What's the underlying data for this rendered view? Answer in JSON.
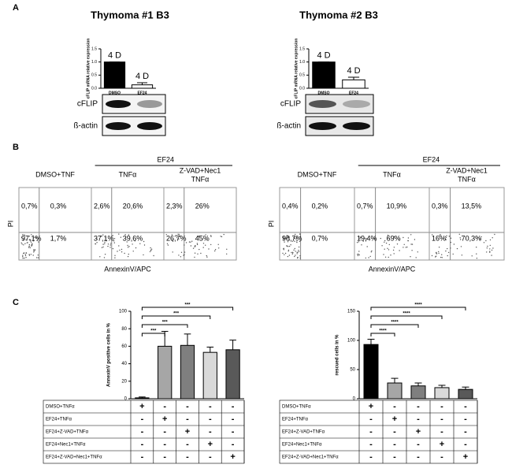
{
  "panel_labels": [
    "A",
    "B",
    "C"
  ],
  "chart_data": [
    {
      "type": "bar",
      "title": "Thymoma  #1 B3",
      "y_label": "cFLIP mRNA relative expression",
      "categories": [
        "DMSO",
        "EF24"
      ],
      "values": [
        1.0,
        0.13
      ],
      "errors": [
        0,
        0.08
      ],
      "annotations": [
        "4 D",
        "4 D"
      ],
      "colors": [
        "#000000",
        "#ffffff"
      ],
      "ylim": [
        0,
        1.5
      ],
      "yticks": [
        {
          "value": 0,
          "label": "0.0"
        },
        {
          "value": 0.5,
          "label": "0.5"
        },
        {
          "value": 1,
          "label": "1.0"
        },
        {
          "value": 1.5,
          "label": "1.5"
        }
      ]
    },
    {
      "type": "bar",
      "title": "Thymoma  #2 B3",
      "y_label": "cFLIP mRNA relative expression",
      "categories": [
        "DMSO",
        "EF24"
      ],
      "values": [
        1.0,
        0.32
      ],
      "errors": [
        0,
        0.1
      ],
      "annotations": [
        "4 D",
        "4 D"
      ],
      "colors": [
        "#000000",
        "#ffffff"
      ],
      "ylim": [
        0,
        1.5
      ],
      "yticks": [
        {
          "value": 0,
          "label": "0.0"
        },
        {
          "value": 0.5,
          "label": "0.5"
        },
        {
          "value": 1,
          "label": "1.0"
        },
        {
          "value": 1.5,
          "label": "1.5"
        }
      ]
    },
    {
      "type": "bar",
      "y_label": "AnnexinV positive cells in %",
      "values": [
        1,
        60,
        61,
        53,
        56
      ],
      "errors": [
        1,
        17,
        13,
        6,
        11
      ],
      "colors": [
        "#000000",
        "#a6a6a6",
        "#7f7f7f",
        "#d9d9d9",
        "#595959"
      ],
      "significance": [
        "***",
        "***",
        "***",
        "***"
      ],
      "ylim": [
        0,
        100
      ],
      "yticks": [
        0,
        20,
        40,
        60,
        80,
        100
      ]
    },
    {
      "type": "bar",
      "y_label": "rescued cells in %",
      "values": [
        93,
        27,
        22,
        19,
        16
      ],
      "errors": [
        9,
        8,
        5,
        4,
        4
      ],
      "colors": [
        "#000000",
        "#a6a6a6",
        "#7f7f7f",
        "#d9d9d9",
        "#595959"
      ],
      "significance": [
        "****",
        "****",
        "****",
        "****"
      ],
      "ylim": [
        0,
        150
      ],
      "yticks": [
        0,
        50,
        100,
        150
      ]
    }
  ],
  "blots": [
    {
      "labels": [
        "cFLIP",
        "ß-actin"
      ]
    },
    {
      "labels": [
        "cFLIP",
        "ß-actin"
      ]
    }
  ],
  "flow": [
    {
      "group_label": "EF24",
      "headers": [
        [
          "DMSO+TNF"
        ],
        [
          "TNFα"
        ],
        [
          "Z-VAD+Nec1",
          "TNFα"
        ]
      ],
      "y_label": "PI",
      "x_label": "AnnexinV/APC",
      "plots": [
        {
          "ul": "0,7%",
          "ur": "0,3%",
          "ll": "97,1%",
          "lr": "1,7%"
        },
        {
          "ul": "2,6%",
          "ur": "20,6%",
          "ll": "37,1%",
          "lr": "39,6%"
        },
        {
          "ul": "2,3%",
          "ur": "26%",
          "ll": "26,7%",
          "lr": "45%"
        }
      ]
    },
    {
      "group_label": "EF24",
      "headers": [
        [
          "DMSO+TNF"
        ],
        [
          "TNFα"
        ],
        [
          "Z-VAD+Nec1",
          "TNFα"
        ]
      ],
      "y_label": "PI",
      "x_label": "AnnexinV/APC",
      "plots": [
        {
          "ul": "0,4%",
          "ur": "0,2%",
          "ll": "98,7%",
          "lr": "0,7%"
        },
        {
          "ul": "0,7%",
          "ur": "10,9%",
          "ll": "19,4%",
          "lr": "69%"
        },
        {
          "ul": "0,3%",
          "ur": "13,5%",
          "ll": "16%",
          "lr": "70,3%"
        }
      ]
    }
  ],
  "tables": [
    {
      "rows": [
        [
          "DMSO+TNFα",
          "+",
          "-",
          "-",
          "-",
          "-"
        ],
        [
          "EF24+TNFα",
          "-",
          "+",
          "-",
          "-",
          "-"
        ],
        [
          "EF24+Z-VAD+TNFα",
          "-",
          "-",
          "+",
          "-",
          "-"
        ],
        [
          "EF24+Nec1+TNFα",
          "-",
          "-",
          "-",
          "+",
          "-"
        ],
        [
          "EF24+Z-VAD+Nec1+TNFα",
          "-",
          "-",
          "-",
          "-",
          "+"
        ]
      ]
    },
    {
      "rows": [
        [
          "DMSO+TNFα",
          "+",
          "-",
          "-",
          "-",
          "-"
        ],
        [
          "EF24+TNFα",
          "-",
          "+",
          "-",
          "-",
          "-"
        ],
        [
          "EF24+Z-VAD+TNFα",
          "-",
          "-",
          "+",
          "-",
          "-"
        ],
        [
          "EF24+Nec1+TNFα",
          "-",
          "-",
          "-",
          "+",
          "-"
        ],
        [
          "EF24+Z-VAD+Nec1+TNFα",
          "-",
          "-",
          "-",
          "-",
          "+"
        ]
      ]
    }
  ]
}
